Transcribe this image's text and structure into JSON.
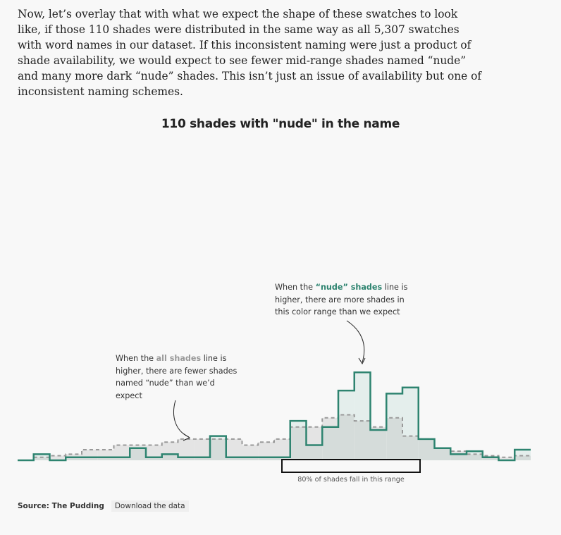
{
  "intro_text": "Now, let’s overlay that with what we expect the shape of these swatches to look like, if those 110 shades were distributed in the same way as all 5,307 swatches with word names in our dataset. If this inconsistent naming were just a product of shade availability, we would expect to see fewer mid-range shades named “nude” and many more dark “nude” shades. This isn’t just an issue of availability but one of inconsistent naming schemes.",
  "annotations": {
    "nude": {
      "pre": "When the ",
      "highlight": "“nude” shades",
      "post": " line is higher, there are more shades in this color range than we expect"
    },
    "all": {
      "pre": "When the ",
      "highlight": "all shades",
      "post": " line is higher, there are fewer shades named “nude” than we’d expect"
    }
  },
  "range_label": "80% of shades fall in this range",
  "footer": {
    "source": "Source: The Pudding",
    "download": "Download the data"
  },
  "colors": {
    "nude_line": "#2e8470",
    "nude_fill": "#e4eeec",
    "all_line": "#999999",
    "all_fill": "#e4e4e4",
    "overlap_fill": "#d5dcda"
  },
  "chart_data": {
    "type": "area",
    "title": "110 shades with \"nude\" in the name",
    "xlabel": "",
    "ylabel": "",
    "x": [
      0,
      1,
      2,
      3,
      4,
      5,
      6,
      7,
      8,
      9,
      10,
      11,
      12,
      13,
      14,
      15,
      16,
      17,
      18,
      19,
      20,
      21,
      22,
      23,
      24,
      25,
      26,
      27,
      28,
      29,
      30,
      31
    ],
    "ylim": [
      0,
      6
    ],
    "highlight_range": [
      16.5,
      25
    ],
    "series": [
      {
        "name": "“nude” shades",
        "style": "solid",
        "values": [
          0,
          0.4,
          0,
          0.2,
          0.2,
          0.2,
          0.2,
          0.8,
          0.2,
          0.4,
          0.2,
          0.2,
          1.6,
          0.2,
          0.2,
          0.2,
          0.2,
          2.6,
          1.0,
          2.2,
          4.6,
          5.8,
          2.0,
          4.4,
          4.8,
          1.4,
          0.8,
          0.4,
          0.6,
          0.2,
          0,
          0.7
        ]
      },
      {
        "name": "all shades",
        "style": "dashed",
        "values": [
          0,
          0.2,
          0.3,
          0.4,
          0.7,
          0.7,
          1.0,
          1.0,
          1.0,
          1.2,
          1.4,
          1.4,
          1.4,
          1.4,
          1.0,
          1.2,
          1.4,
          2.2,
          2.2,
          2.8,
          3.0,
          2.6,
          2.2,
          2.8,
          1.6,
          1.4,
          0.8,
          0.6,
          0.4,
          0.3,
          0.2,
          0.3
        ]
      }
    ]
  }
}
